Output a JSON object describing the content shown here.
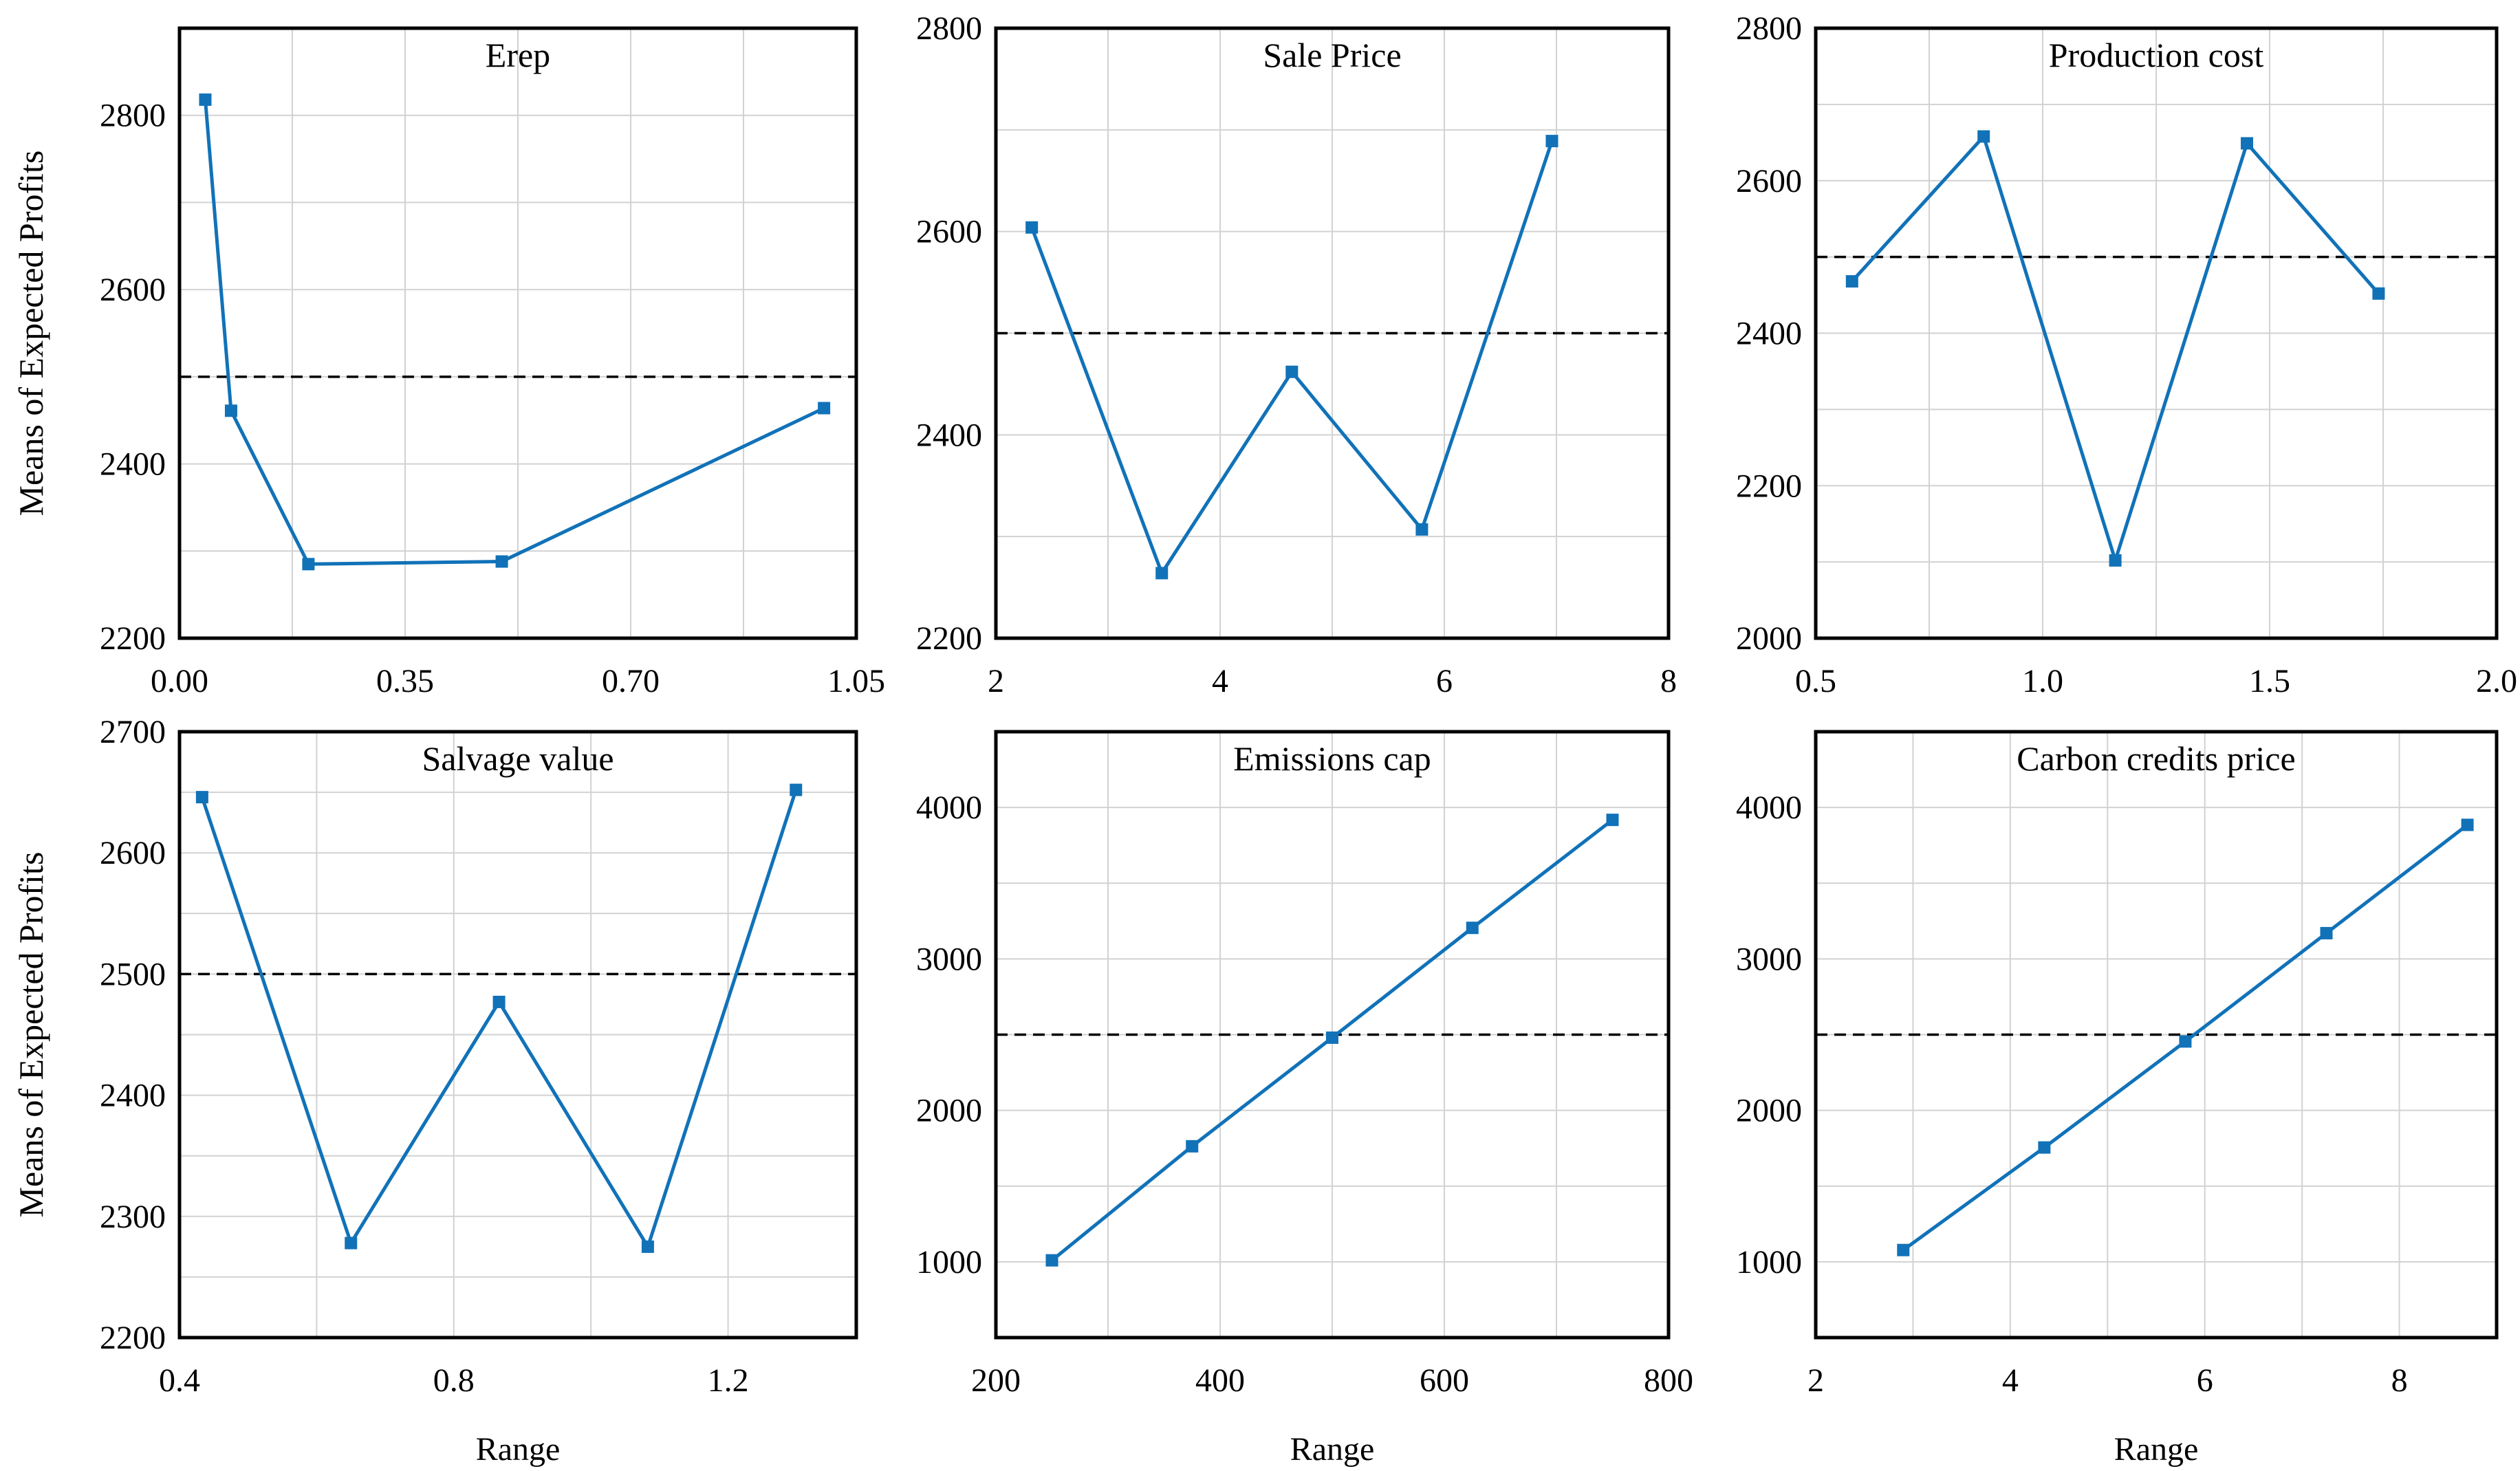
{
  "figure": {
    "type": "sensitivity-analysis-grid",
    "rows": 2,
    "cols": 3,
    "shared_ylabel": "Means of Expected Profits",
    "shared_xlabel": "Range",
    "baseline_value": 2500,
    "colors": {
      "line": "#1172b8",
      "marker": "#1172b8",
      "grid": "#d2d2d2",
      "border": "#000000",
      "baseline": "#000000",
      "background": "#ffffff",
      "text": "#000000"
    }
  },
  "chart_data": [
    {
      "type": "line",
      "title": "Erep",
      "slug": "erep",
      "x": [
        0.04,
        0.08,
        0.2,
        0.5,
        1.0
      ],
      "y": [
        2818,
        2461,
        2285,
        2288,
        2464
      ],
      "xlim": [
        0.0,
        1.05
      ],
      "ylim": [
        2200,
        2900
      ],
      "xtick_values": [
        0.0,
        0.35,
        0.7,
        1.05
      ],
      "xtick_labels": [
        "0.00",
        "0.35",
        "0.70",
        "1.05"
      ],
      "ytick_values": [
        2200,
        2400,
        2600,
        2800
      ],
      "ytick_labels": [
        "2200",
        "2400",
        "2600",
        "2800"
      ],
      "x_grid_step": 0.175,
      "y_grid_step": 100,
      "baseline": 2500,
      "ylabel": "Means of Expected Profits",
      "xlabel": null,
      "legend": null,
      "grid": true
    },
    {
      "type": "line",
      "title": "Sale Price",
      "slug": "sale-price",
      "x": [
        2.32,
        3.48,
        4.64,
        5.8,
        6.96
      ],
      "y": [
        2604,
        2264,
        2462,
        2307,
        2689
      ],
      "xlim": [
        2,
        8
      ],
      "ylim": [
        2200,
        2800
      ],
      "xtick_values": [
        2,
        4,
        6,
        8
      ],
      "xtick_labels": [
        "2",
        "4",
        "6",
        "8"
      ],
      "ytick_values": [
        2200,
        2400,
        2600,
        2800
      ],
      "ytick_labels": [
        "2200",
        "2400",
        "2600",
        "2800"
      ],
      "x_grid_step": 1,
      "y_grid_step": 100,
      "baseline": 2500,
      "ylabel": null,
      "xlabel": null,
      "legend": null,
      "grid": true
    },
    {
      "type": "line",
      "title": "Production cost",
      "slug": "production-cost",
      "x": [
        0.58,
        0.87,
        1.16,
        1.45,
        1.74
      ],
      "y": [
        2468,
        2658,
        2102,
        2649,
        2452
      ],
      "xlim": [
        0.5,
        2.0
      ],
      "ylim": [
        2000,
        2800
      ],
      "xtick_values": [
        0.5,
        1.0,
        1.5,
        2.0
      ],
      "xtick_labels": [
        "0.5",
        "1.0",
        "1.5",
        "2.0"
      ],
      "ytick_values": [
        2000,
        2200,
        2400,
        2600,
        2800
      ],
      "ytick_labels": [
        "2000",
        "2200",
        "2400",
        "2600",
        "2800"
      ],
      "x_grid_step": 0.25,
      "y_grid_step": 100,
      "baseline": 2500,
      "ylabel": null,
      "xlabel": null,
      "legend": null,
      "grid": true
    },
    {
      "type": "line",
      "title": "Salvage value",
      "slug": "salvage-value",
      "x": [
        0.433,
        0.65,
        0.866,
        1.083,
        1.299
      ],
      "y": [
        2646,
        2278,
        2477,
        2275,
        2652
      ],
      "xlim": [
        0.4,
        1.387
      ],
      "ylim": [
        2200,
        2700
      ],
      "xtick_values": [
        0.4,
        0.8,
        1.2
      ],
      "xtick_labels": [
        "0.4",
        "0.8",
        "1.2"
      ],
      "ytick_values": [
        2200,
        2300,
        2400,
        2500,
        2600,
        2700
      ],
      "ytick_labels": [
        "2200",
        "2300",
        "2400",
        "2500",
        "2600",
        "2700"
      ],
      "x_grid_step": 0.2,
      "y_grid_step": 50,
      "baseline": 2500,
      "ylabel": "Means of Expected Profits",
      "xlabel": "Range",
      "legend": null,
      "grid": true
    },
    {
      "type": "line",
      "title": "Emissions cap",
      "slug": "emissions-cap",
      "x": [
        250,
        375,
        500,
        625,
        750
      ],
      "y": [
        1010,
        1763,
        2480,
        3205,
        3918
      ],
      "xlim": [
        200,
        800
      ],
      "ylim": [
        500,
        4500
      ],
      "xtick_values": [
        200,
        400,
        600,
        800
      ],
      "xtick_labels": [
        "200",
        "400",
        "600",
        "800"
      ],
      "ytick_values": [
        1000,
        2000,
        3000,
        4000
      ],
      "ytick_labels": [
        "1000",
        "2000",
        "3000",
        "4000"
      ],
      "x_grid_step": 100,
      "y_grid_step": 500,
      "baseline": 2500,
      "ylabel": null,
      "xlabel": "Range",
      "legend": null,
      "grid": true
    },
    {
      "type": "line",
      "title": "Carbon credits price",
      "slug": "carbon-credits-price",
      "x": [
        2.9,
        4.35,
        5.8,
        7.25,
        8.7
      ],
      "y": [
        1078,
        1755,
        2455,
        3170,
        3885
      ],
      "xlim": [
        2,
        9
      ],
      "ylim": [
        500,
        4500
      ],
      "xtick_values": [
        2,
        4,
        6,
        8
      ],
      "xtick_labels": [
        "2",
        "4",
        "6",
        "8"
      ],
      "ytick_values": [
        1000,
        2000,
        3000,
        4000
      ],
      "ytick_labels": [
        "1000",
        "2000",
        "3000",
        "4000"
      ],
      "x_grid_step": 1,
      "y_grid_step": 500,
      "baseline": 2500,
      "ylabel": null,
      "xlabel": "Range",
      "legend": null,
      "grid": true
    }
  ]
}
